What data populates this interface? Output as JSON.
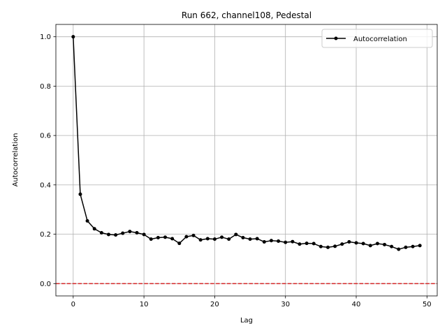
{
  "chart_data": {
    "type": "line",
    "title": "Run 662, channel108, Pedestal",
    "xlabel": "Lag",
    "ylabel": "Autocorrelation",
    "xlim": [
      -2.45,
      51.45
    ],
    "ylim": [
      -0.05,
      1.05
    ],
    "xticks": [
      0,
      10,
      20,
      30,
      40,
      50
    ],
    "yticks": [
      0.0,
      0.2,
      0.4,
      0.6,
      0.8,
      1.0
    ],
    "grid": true,
    "legend_position": "top-right",
    "reference_line": {
      "y": 0.0,
      "color": "#d62728",
      "style": "dashed"
    },
    "series": [
      {
        "name": "Autocorrelation",
        "color": "#000000",
        "marker": "dot",
        "x": [
          0,
          1,
          2,
          3,
          4,
          5,
          6,
          7,
          8,
          9,
          10,
          11,
          12,
          13,
          14,
          15,
          16,
          17,
          18,
          19,
          20,
          21,
          22,
          23,
          24,
          25,
          26,
          27,
          28,
          29,
          30,
          31,
          32,
          33,
          34,
          35,
          36,
          37,
          38,
          39,
          40,
          41,
          42,
          43,
          44,
          45,
          46,
          47,
          48,
          49
        ],
        "y": [
          1.0,
          0.362,
          0.254,
          0.222,
          0.206,
          0.199,
          0.197,
          0.204,
          0.211,
          0.206,
          0.199,
          0.18,
          0.186,
          0.188,
          0.182,
          0.163,
          0.19,
          0.195,
          0.177,
          0.182,
          0.18,
          0.188,
          0.18,
          0.199,
          0.186,
          0.18,
          0.182,
          0.169,
          0.174,
          0.172,
          0.167,
          0.17,
          0.16,
          0.163,
          0.162,
          0.15,
          0.147,
          0.151,
          0.16,
          0.169,
          0.165,
          0.162,
          0.154,
          0.162,
          0.158,
          0.15,
          0.139,
          0.147,
          0.15,
          0.154
        ]
      }
    ]
  }
}
